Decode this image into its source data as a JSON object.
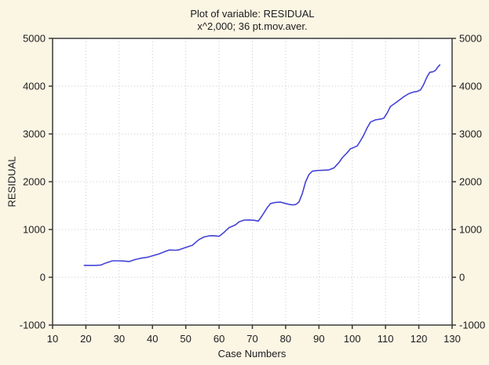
{
  "window": {
    "background_color": "#fbf5e4",
    "plot_background_color": "#ffffff",
    "frame_color": "#3a3a3a",
    "grid_color": "#c9c9c9",
    "text_color": "#1c1c1c"
  },
  "chart_data": {
    "type": "line",
    "title": "Plot of variable: RESIDUAL",
    "subtitle": "x^2,000; 36 pt.mov.aver.",
    "xlabel": "Case Numbers",
    "ylabel": "RESIDUAL",
    "xlim": [
      10,
      130
    ],
    "ylim": [
      -1000,
      5000
    ],
    "xticks": [
      10,
      20,
      30,
      40,
      50,
      60,
      70,
      80,
      90,
      100,
      110,
      120,
      130
    ],
    "yticks": [
      -1000,
      0,
      1000,
      2000,
      3000,
      4000,
      5000
    ],
    "grid": "dotted major gridlines, both axes",
    "legend": "none",
    "right_axis_labels": true,
    "line_color": "#4343d6",
    "series": [
      {
        "name": "RESIDUAL 36 pt. moving average",
        "x": [
          19.5,
          21,
          23,
          24.5,
          26,
          28,
          30,
          31.5,
          33,
          35,
          37,
          38.5,
          40,
          42,
          44,
          45,
          47,
          48,
          50,
          52,
          54,
          55.5,
          57,
          58.5,
          60,
          61.5,
          63,
          64,
          65,
          66,
          67.5,
          69,
          70.5,
          71.8,
          73,
          74.5,
          75.5,
          77,
          78.5,
          80,
          81,
          82,
          83,
          84,
          85,
          86,
          87,
          88,
          89.5,
          91,
          93,
          94.5,
          96,
          97,
          98.5,
          99.5,
          100.5,
          101.5,
          102.5,
          103.5,
          104.5,
          105.5,
          107,
          108.5,
          109.5,
          110.5,
          111.5,
          112.5,
          114,
          115.5,
          117,
          118.5,
          119.5,
          120.5,
          121.5,
          122.5,
          123.3,
          124.2,
          125,
          125.7,
          126.3
        ],
        "y": [
          250,
          250,
          250,
          255,
          300,
          345,
          345,
          340,
          330,
          375,
          405,
          420,
          450,
          490,
          545,
          570,
          565,
          575,
          625,
          670,
          790,
          845,
          868,
          870,
          858,
          940,
          1040,
          1068,
          1100,
          1160,
          1196,
          1200,
          1193,
          1175,
          1295,
          1460,
          1545,
          1567,
          1572,
          1545,
          1527,
          1515,
          1522,
          1575,
          1750,
          2000,
          2150,
          2220,
          2235,
          2240,
          2248,
          2288,
          2400,
          2500,
          2610,
          2690,
          2718,
          2750,
          2860,
          2980,
          3130,
          3250,
          3295,
          3310,
          3330,
          3440,
          3575,
          3625,
          3700,
          3780,
          3845,
          3878,
          3890,
          3920,
          4040,
          4200,
          4290,
          4300,
          4330,
          4400,
          4445
        ]
      }
    ]
  }
}
